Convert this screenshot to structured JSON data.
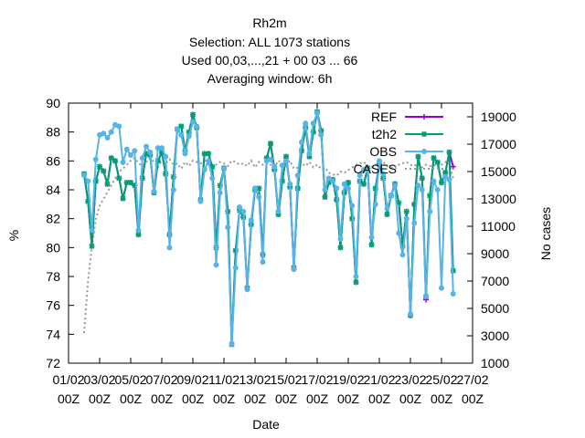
{
  "chart_data": {
    "type": "line",
    "title_lines": [
      "Rh2m",
      "Selection: ALL   1073 stations",
      "Used  00,03,...,21  + 00 03 ... 66",
      "Averaging window:  6h"
    ],
    "xlabel": "Date",
    "ylabel": "%",
    "y2label": "No cases",
    "x_ticks": [
      {
        "day": 1,
        "top": "01/02",
        "bottom": "00Z"
      },
      {
        "day": 3,
        "top": "03/02",
        "bottom": "00Z"
      },
      {
        "day": 5,
        "top": "05/02",
        "bottom": "00Z"
      },
      {
        "day": 7,
        "top": "07/02",
        "bottom": "00Z"
      },
      {
        "day": 9,
        "top": "09/02",
        "bottom": "00Z"
      },
      {
        "day": 11,
        "top": "11/02",
        "bottom": "00Z"
      },
      {
        "day": 13,
        "top": "13/02",
        "bottom": "00Z"
      },
      {
        "day": 15,
        "top": "15/02",
        "bottom": "00Z"
      },
      {
        "day": 17,
        "top": "17/02",
        "bottom": "00Z"
      },
      {
        "day": 19,
        "top": "19/02",
        "bottom": "00Z"
      },
      {
        "day": 21,
        "top": "21/02",
        "bottom": "00Z"
      },
      {
        "day": 23,
        "top": "23/02",
        "bottom": "00Z"
      },
      {
        "day": 25,
        "top": "25/02",
        "bottom": "00Z"
      },
      {
        "day": 27,
        "top": "27/02",
        "bottom": "00Z"
      }
    ],
    "xlim": [
      1,
      27
    ],
    "ylim": [
      72,
      90
    ],
    "y_ticks": [
      72,
      74,
      76,
      78,
      80,
      82,
      84,
      86,
      88,
      90
    ],
    "y2lim": [
      1000,
      20000
    ],
    "y2_ticks": [
      1000,
      3000,
      5000,
      7000,
      9000,
      11000,
      13000,
      15000,
      17000,
      19000
    ],
    "legend_position": "top-right",
    "legend": [
      "REF",
      "t2h2",
      "OBS",
      "CASES"
    ],
    "colors": {
      "REF": "#9400d3",
      "t2h2": "#009e73",
      "OBS": "#56b4e9",
      "CASES": "#999999"
    },
    "x_day": [
      2.0,
      2.25,
      2.5,
      2.75,
      3.0,
      3.25,
      3.5,
      3.75,
      4.0,
      4.25,
      4.5,
      4.75,
      5.0,
      5.25,
      5.5,
      5.75,
      6.0,
      6.25,
      6.5,
      6.75,
      7.0,
      7.25,
      7.5,
      7.75,
      8.0,
      8.25,
      8.5,
      8.75,
      9.0,
      9.25,
      9.5,
      9.75,
      10.0,
      10.25,
      10.5,
      10.75,
      11.0,
      11.25,
      11.5,
      11.75,
      12.0,
      12.25,
      12.5,
      12.75,
      13.0,
      13.25,
      13.5,
      13.75,
      14.0,
      14.25,
      14.5,
      14.75,
      15.0,
      15.25,
      15.5,
      15.75,
      16.0,
      16.25,
      16.5,
      16.75,
      17.0,
      17.25,
      17.5,
      17.75,
      18.0,
      18.25,
      18.5,
      18.75,
      19.0,
      19.25,
      19.5,
      19.75,
      20.0,
      20.25,
      20.5,
      20.75,
      21.0,
      21.25,
      21.5,
      21.75,
      22.0,
      22.25,
      22.5,
      22.75,
      23.0,
      23.25,
      23.5,
      23.75,
      24.0,
      24.25,
      24.5,
      24.75,
      25.0,
      25.25,
      25.5,
      25.75
    ],
    "series": [
      {
        "name": "t2h2",
        "values": [
          85.1,
          83.2,
          80.1,
          84.6,
          85.6,
          85.3,
          84.4,
          86.2,
          86.0,
          84.8,
          83.4,
          84.5,
          84.5,
          84.3,
          80.9,
          84.8,
          86.5,
          86.4,
          83.8,
          86.0,
          86.6,
          85.1,
          80.9,
          84.9,
          88.2,
          88.4,
          86.7,
          88.0,
          89.2,
          88.3,
          83.3,
          86.5,
          86.5,
          85.6,
          80.0,
          84.3,
          85.5,
          82.5,
          73.3,
          79.8,
          82.6,
          82.1,
          77.2,
          81.6,
          84.0,
          84.1,
          79.5,
          86.2,
          87.2,
          85.4,
          82.3,
          84.6,
          86.3,
          84.2,
          78.6,
          84.1,
          86.7,
          88.3,
          86.3,
          88.0,
          89.4,
          88.1,
          83.5,
          84.5,
          84.7,
          83.3,
          80.0,
          83.8,
          84.5,
          82.0,
          77.6,
          84.6,
          84.4,
          85.5,
          80.2,
          84.1,
          85.8,
          84.8,
          82.3,
          83.6,
          84.4,
          83.1,
          80.1,
          82.5,
          75.3,
          83.0,
          86.3,
          84.8,
          76.6,
          83.6,
          86.2,
          85.9,
          84.5,
          85.2,
          86.6,
          78.4
        ]
      },
      {
        "name": "OBS",
        "values": [
          85.0,
          84.6,
          81.2,
          86.1,
          87.8,
          87.9,
          87.6,
          88.0,
          88.5,
          88.4,
          85.9,
          86.8,
          86.4,
          86.7,
          81.2,
          86.2,
          87.0,
          86.6,
          83.9,
          86.9,
          86.9,
          86.3,
          80.0,
          84.0,
          88.2,
          87.8,
          86.5,
          87.7,
          88.7,
          88.4,
          83.2,
          85.4,
          86.0,
          84.8,
          78.8,
          83.8,
          85.5,
          81.4,
          73.3,
          78.6,
          82.8,
          82.5,
          77.1,
          81.9,
          84.1,
          83.5,
          79.0,
          86.0,
          86.1,
          85.6,
          82.5,
          85.7,
          86.0,
          84.4,
          78.5,
          85.0,
          87.3,
          88.6,
          86.5,
          88.6,
          89.3,
          87.8,
          84.0,
          84.8,
          84.6,
          84.1,
          80.6,
          84.4,
          84.1,
          82.9,
          78.0,
          85.0,
          85.4,
          85.3,
          80.7,
          83.0,
          86.0,
          85.1,
          82.7,
          83.6,
          84.3,
          81.0,
          79.5,
          82.0,
          75.4,
          81.7,
          84.3,
          84.0,
          76.6,
          82.5,
          84.6,
          84.0,
          77.2,
          84.9,
          84.7,
          76.8
        ]
      },
      {
        "name": "REF",
        "values": [
          85.1,
          83.2,
          80.1,
          84.6,
          85.6,
          85.3,
          84.4,
          86.2,
          86.0,
          84.8,
          83.4,
          84.5,
          84.5,
          84.3,
          80.9,
          84.8,
          86.5,
          86.4,
          83.8,
          86.0,
          86.6,
          85.1,
          80.9,
          84.9,
          88.2,
          88.4,
          86.7,
          88.0,
          89.2,
          88.3,
          83.3,
          86.5,
          86.5,
          85.6,
          80.0,
          84.3,
          85.5,
          82.5,
          73.3,
          79.8,
          82.6,
          82.1,
          77.2,
          81.6,
          84.0,
          84.1,
          79.5,
          86.2,
          87.2,
          85.4,
          82.3,
          84.6,
          86.3,
          84.2,
          78.6,
          84.1,
          86.7,
          88.3,
          86.3,
          88.0,
          89.4,
          88.1,
          83.5,
          84.5,
          84.7,
          83.3,
          80.0,
          83.8,
          84.5,
          82.0,
          77.6,
          84.6,
          84.4,
          85.5,
          80.2,
          84.1,
          85.8,
          84.8,
          82.3,
          83.6,
          84.4,
          83.1,
          80.1,
          82.5,
          75.3,
          83.0,
          86.3,
          84.8,
          76.4,
          83.6,
          86.2,
          85.9,
          84.5,
          85.2,
          86.6,
          85.6
        ]
      },
      {
        "name": "CASES",
        "axis": "y2",
        "values": [
          3200,
          7000,
          9500,
          11500,
          12500,
          13000,
          13500,
          14000,
          14500,
          15000,
          15200,
          15500,
          15800,
          16000,
          15600,
          15400,
          15700,
          16000,
          15700,
          15300,
          15800,
          15600,
          15900,
          15500,
          15600,
          15200,
          15700,
          15400,
          15800,
          15700,
          15600,
          15800,
          15500,
          15400,
          15500,
          15700,
          15600,
          15400,
          15800,
          15700,
          15500,
          15600,
          15400,
          15800,
          15300,
          15700,
          15500,
          15900,
          15500,
          15300,
          15800,
          15600,
          15400,
          15800,
          15200,
          15300,
          15600,
          15400,
          15700,
          15300,
          15500,
          15200,
          15300,
          14900,
          14800,
          14700,
          15000,
          14900,
          15100,
          15300,
          15500,
          15600,
          15700,
          15400,
          15300,
          15500,
          15600,
          15700,
          15400,
          15300,
          15200,
          15500,
          15600,
          15700,
          15500,
          15400,
          15600,
          15300,
          15500,
          15400,
          15500,
          15300,
          15500,
          15700,
          15600,
          14500
        ]
      }
    ]
  }
}
